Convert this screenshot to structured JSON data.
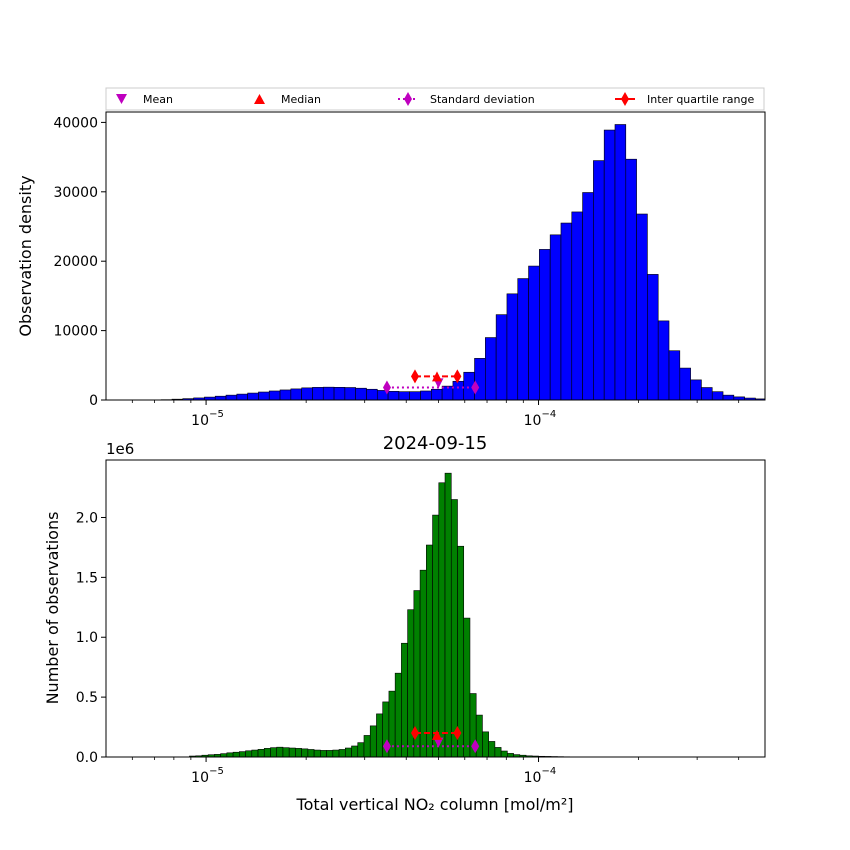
{
  "colors": {
    "top_bars": "#0000ff",
    "bottom_bars": "#008000",
    "mean": "#bf00bf",
    "median": "#ff0000",
    "std": "#bf00bf",
    "iqr": "#ff0000"
  },
  "legend": {
    "mean": "Mean",
    "median": "Median",
    "std": "Standard deviation",
    "iqr": "Inter quartile range"
  },
  "chart_data": [
    {
      "type": "bar",
      "title": "",
      "xlabel": "",
      "ylabel": "Observation density",
      "xscale": "log",
      "xlim": [
        5e-06,
        0.00048
      ],
      "ylim": [
        0,
        41500
      ],
      "yticks": [
        0,
        10000,
        20000,
        30000,
        40000
      ],
      "ytick_labels": [
        "0",
        "10000",
        "20000",
        "30000",
        "40000"
      ],
      "xticks": [
        1e-05,
        0.0001
      ],
      "xtick_labels": [
        "10",
        "10"
      ],
      "xtick_exponents": [
        "−5",
        "−4"
      ],
      "bar_color": "#0000ff",
      "bins": {
        "log10_start": -5.2,
        "log10_step": 0.0325
      },
      "values": [
        0,
        0,
        50,
        120,
        200,
        300,
        420,
        550,
        700,
        850,
        1000,
        1150,
        1300,
        1450,
        1600,
        1750,
        1820,
        1850,
        1830,
        1800,
        1700,
        1550,
        1380,
        1250,
        1200,
        1200,
        1300,
        1550,
        2000,
        2700,
        4000,
        6000,
        9000,
        12300,
        15300,
        17500,
        19300,
        21700,
        23800,
        25500,
        27100,
        29900,
        34500,
        38900,
        39700,
        34700,
        26800,
        18100,
        11400,
        7100,
        4600,
        2900,
        1800,
        1200,
        700,
        450,
        280,
        160,
        90,
        50,
        30,
        10,
        0
      ],
      "stats": {
        "mean": {
          "x": 5e-05,
          "y": 2400
        },
        "median": {
          "x": 4.95e-05,
          "y": 3400
        },
        "std": {
          "x": [
            3.5e-05,
            6.45e-05
          ],
          "y": 1800
        },
        "iqr": {
          "x": [
            4.25e-05,
            5.7e-05
          ],
          "y": 3400
        }
      }
    },
    {
      "type": "bar",
      "title": "2024-09-15",
      "xlabel": "Total vertical NO₂ column [mol/m²]",
      "ylabel": "Number of observations",
      "xscale": "log",
      "xlim": [
        5e-06,
        0.00048
      ],
      "ylim": [
        0,
        2.48
      ],
      "y_multiplier": "1e6",
      "yticks": [
        0,
        0.5,
        1.0,
        1.5,
        2.0
      ],
      "ytick_labels": [
        "0.0",
        "0.5",
        "1.0",
        "1.5",
        "2.0"
      ],
      "xticks": [
        1e-05,
        0.0001
      ],
      "xtick_labels": [
        "10",
        "10"
      ],
      "xtick_exponents": [
        "−5",
        "−4"
      ],
      "bar_color": "#008000",
      "bins": {
        "log10_start": -5.05,
        "log10_step": 0.01875
      },
      "values": [
        0.008,
        0.01,
        0.015,
        0.019,
        0.022,
        0.028,
        0.035,
        0.04,
        0.045,
        0.052,
        0.058,
        0.064,
        0.072,
        0.078,
        0.082,
        0.078,
        0.075,
        0.072,
        0.068,
        0.063,
        0.058,
        0.055,
        0.055,
        0.058,
        0.063,
        0.075,
        0.092,
        0.12,
        0.18,
        0.26,
        0.36,
        0.46,
        0.55,
        0.7,
        0.95,
        1.23,
        1.39,
        1.56,
        1.77,
        2.02,
        2.29,
        2.37,
        2.15,
        1.76,
        1.16,
        0.53,
        0.35,
        0.21,
        0.13,
        0.08,
        0.05,
        0.03,
        0.02,
        0.015,
        0.01,
        0.008,
        0.006,
        0.005,
        0.004,
        0.003,
        0.002,
        0.001,
        0.001,
        0.001
      ],
      "stats": {
        "mean": {
          "x": 5e-05,
          "y": 0.12
        },
        "median": {
          "x": 4.95e-05,
          "y": 0.185
        },
        "std": {
          "x": [
            3.5e-05,
            6.45e-05
          ],
          "y": 0.09
        },
        "iqr": {
          "x": [
            4.25e-05,
            5.7e-05
          ],
          "y": 0.2
        }
      }
    }
  ]
}
